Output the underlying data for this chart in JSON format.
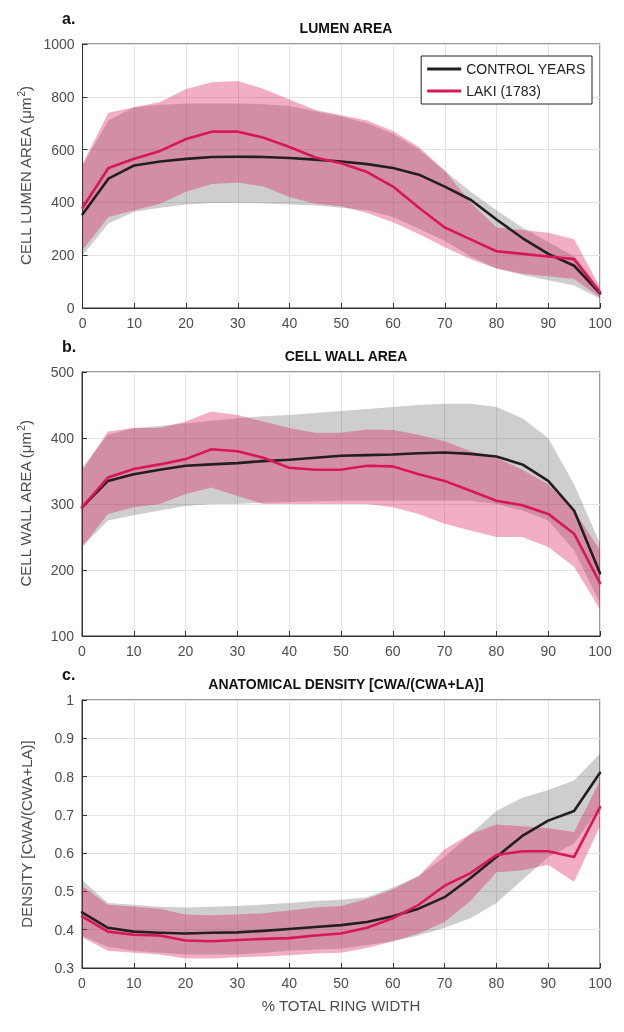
{
  "chart_data": [
    {
      "type": "line",
      "title": "LUMEN AREA",
      "ylabel": "CELL LUMEN AREA (μm$^{2}$)",
      "annotations": [
        "a."
      ],
      "legend": "top right",
      "grid": true,
      "x": [
        0,
        5,
        10,
        15,
        20,
        25,
        30,
        35,
        40,
        45,
        50,
        55,
        60,
        65,
        70,
        75,
        80,
        85,
        90,
        95,
        100
      ],
      "xlim": [
        0,
        100
      ],
      "xticks": [
        0,
        10,
        20,
        30,
        40,
        50,
        60,
        70,
        80,
        90,
        100
      ],
      "ylim": [
        0,
        1000
      ],
      "yticks": [
        0,
        200,
        400,
        600,
        800,
        1000
      ],
      "series": [
        {
          "name": "CONTROL YEARS",
          "color": "#231f20",
          "values": [
            355,
            490,
            540,
            555,
            565,
            572,
            573,
            572,
            568,
            562,
            555,
            545,
            530,
            505,
            460,
            410,
            335,
            265,
            205,
            160,
            55
          ],
          "lower": [
            200,
            320,
            365,
            380,
            392,
            398,
            398,
            396,
            392,
            388,
            380,
            370,
            345,
            300,
            255,
            195,
            150,
            125,
            105,
            85,
            35
          ],
          "upper": [
            540,
            710,
            760,
            770,
            775,
            775,
            775,
            772,
            765,
            745,
            725,
            700,
            660,
            600,
            520,
            440,
            370,
            305,
            250,
            195,
            70
          ]
        },
        {
          "name": "LAKI (1783)",
          "color": "#d6175a",
          "values": [
            380,
            530,
            565,
            595,
            640,
            668,
            668,
            645,
            610,
            570,
            548,
            515,
            460,
            380,
            305,
            260,
            215,
            205,
            195,
            185,
            60
          ],
          "lower": [
            220,
            345,
            370,
            395,
            440,
            470,
            475,
            460,
            420,
            395,
            385,
            360,
            325,
            280,
            230,
            185,
            150,
            130,
            120,
            110,
            40
          ],
          "upper": [
            545,
            740,
            760,
            780,
            830,
            855,
            860,
            830,
            790,
            750,
            730,
            710,
            670,
            610,
            520,
            400,
            305,
            295,
            285,
            260,
            80
          ]
        }
      ]
    },
    {
      "type": "line",
      "title": "CELL WALL AREA",
      "ylabel": "CELL WALL AREA (μm$^{2}$)",
      "annotations": [
        "b."
      ],
      "grid": true,
      "x": [
        0,
        5,
        10,
        15,
        20,
        25,
        30,
        35,
        40,
        45,
        50,
        55,
        60,
        65,
        70,
        75,
        80,
        85,
        90,
        95,
        100
      ],
      "xlim": [
        0,
        100
      ],
      "xticks": [
        0,
        10,
        20,
        30,
        40,
        50,
        60,
        70,
        80,
        90,
        100
      ],
      "ylim": [
        100,
        500
      ],
      "yticks": [
        100,
        200,
        300,
        400,
        500
      ],
      "series": [
        {
          "color": "#231f20",
          "values": [
            295,
            335,
            345,
            352,
            358,
            360,
            362,
            365,
            367,
            370,
            373,
            374,
            375,
            377,
            378,
            376,
            372,
            360,
            335,
            290,
            195
          ],
          "lower": [
            235,
            275,
            283,
            290,
            297,
            300,
            300,
            302,
            303,
            304,
            305,
            305,
            305,
            305,
            305,
            305,
            300,
            290,
            275,
            230,
            150
          ],
          "upper": [
            355,
            405,
            415,
            418,
            422,
            426,
            430,
            433,
            435,
            438,
            441,
            444,
            447,
            450,
            452,
            452,
            447,
            430,
            400,
            330,
            240
          ]
        },
        {
          "color": "#d6175a",
          "values": [
            295,
            340,
            353,
            360,
            368,
            383,
            380,
            370,
            355,
            352,
            352,
            358,
            357,
            345,
            335,
            320,
            305,
            298,
            285,
            255,
            180
          ],
          "lower": [
            235,
            285,
            295,
            300,
            315,
            325,
            312,
            300,
            300,
            300,
            300,
            300,
            295,
            285,
            270,
            260,
            250,
            250,
            235,
            205,
            140
          ],
          "upper": [
            350,
            410,
            415,
            415,
            425,
            440,
            435,
            425,
            415,
            408,
            408,
            413,
            412,
            405,
            395,
            380,
            370,
            352,
            330,
            290,
            230
          ]
        }
      ]
    },
    {
      "type": "line",
      "title": "ANATOMICAL DENSITY [CWA/(CWA+LA)]",
      "ylabel": "DENSITY [CWA/(CWA+LA)]",
      "xlabel": "% TOTAL RING WIDTH",
      "annotations": [
        "c."
      ],
      "grid": true,
      "x": [
        0,
        5,
        10,
        15,
        20,
        25,
        30,
        35,
        40,
        45,
        50,
        55,
        60,
        65,
        70,
        75,
        80,
        85,
        90,
        95,
        100
      ],
      "xlim": [
        0,
        100
      ],
      "xticks": [
        0,
        10,
        20,
        30,
        40,
        50,
        60,
        70,
        80,
        90,
        100
      ],
      "ylim": [
        0.3,
        1
      ],
      "yticks": [
        0.3,
        0.4,
        0.5,
        0.6,
        0.7,
        0.8,
        0.9,
        1
      ],
      "series": [
        {
          "color": "#231f20",
          "values": [
            0.445,
            0.405,
            0.395,
            0.392,
            0.39,
            0.392,
            0.393,
            0.397,
            0.402,
            0.407,
            0.412,
            0.42,
            0.435,
            0.455,
            0.485,
            0.535,
            0.59,
            0.645,
            0.685,
            0.71,
            0.81
          ],
          "lower": [
            0.385,
            0.355,
            0.345,
            0.34,
            0.335,
            0.335,
            0.335,
            0.34,
            0.345,
            0.348,
            0.35,
            0.36,
            0.37,
            0.385,
            0.405,
            0.43,
            0.47,
            0.53,
            0.59,
            0.625,
            0.72
          ],
          "upper": [
            0.53,
            0.47,
            0.465,
            0.46,
            0.458,
            0.46,
            0.462,
            0.466,
            0.47,
            0.475,
            0.478,
            0.485,
            0.51,
            0.54,
            0.59,
            0.65,
            0.71,
            0.745,
            0.765,
            0.79,
            0.86
          ]
        },
        {
          "color": "#d6175a",
          "values": [
            0.435,
            0.395,
            0.387,
            0.385,
            0.372,
            0.37,
            0.373,
            0.376,
            0.378,
            0.385,
            0.39,
            0.405,
            0.43,
            0.465,
            0.515,
            0.548,
            0.595,
            0.605,
            0.605,
            0.59,
            0.72
          ],
          "lower": [
            0.38,
            0.345,
            0.34,
            0.335,
            0.325,
            0.325,
            0.328,
            0.33,
            0.333,
            0.338,
            0.34,
            0.352,
            0.37,
            0.39,
            0.42,
            0.475,
            0.55,
            0.555,
            0.57,
            0.525,
            0.67
          ],
          "upper": [
            0.515,
            0.465,
            0.46,
            0.455,
            0.44,
            0.438,
            0.44,
            0.443,
            0.45,
            0.458,
            0.462,
            0.48,
            0.505,
            0.54,
            0.61,
            0.65,
            0.675,
            0.67,
            0.665,
            0.655,
            0.79
          ]
        }
      ]
    }
  ]
}
